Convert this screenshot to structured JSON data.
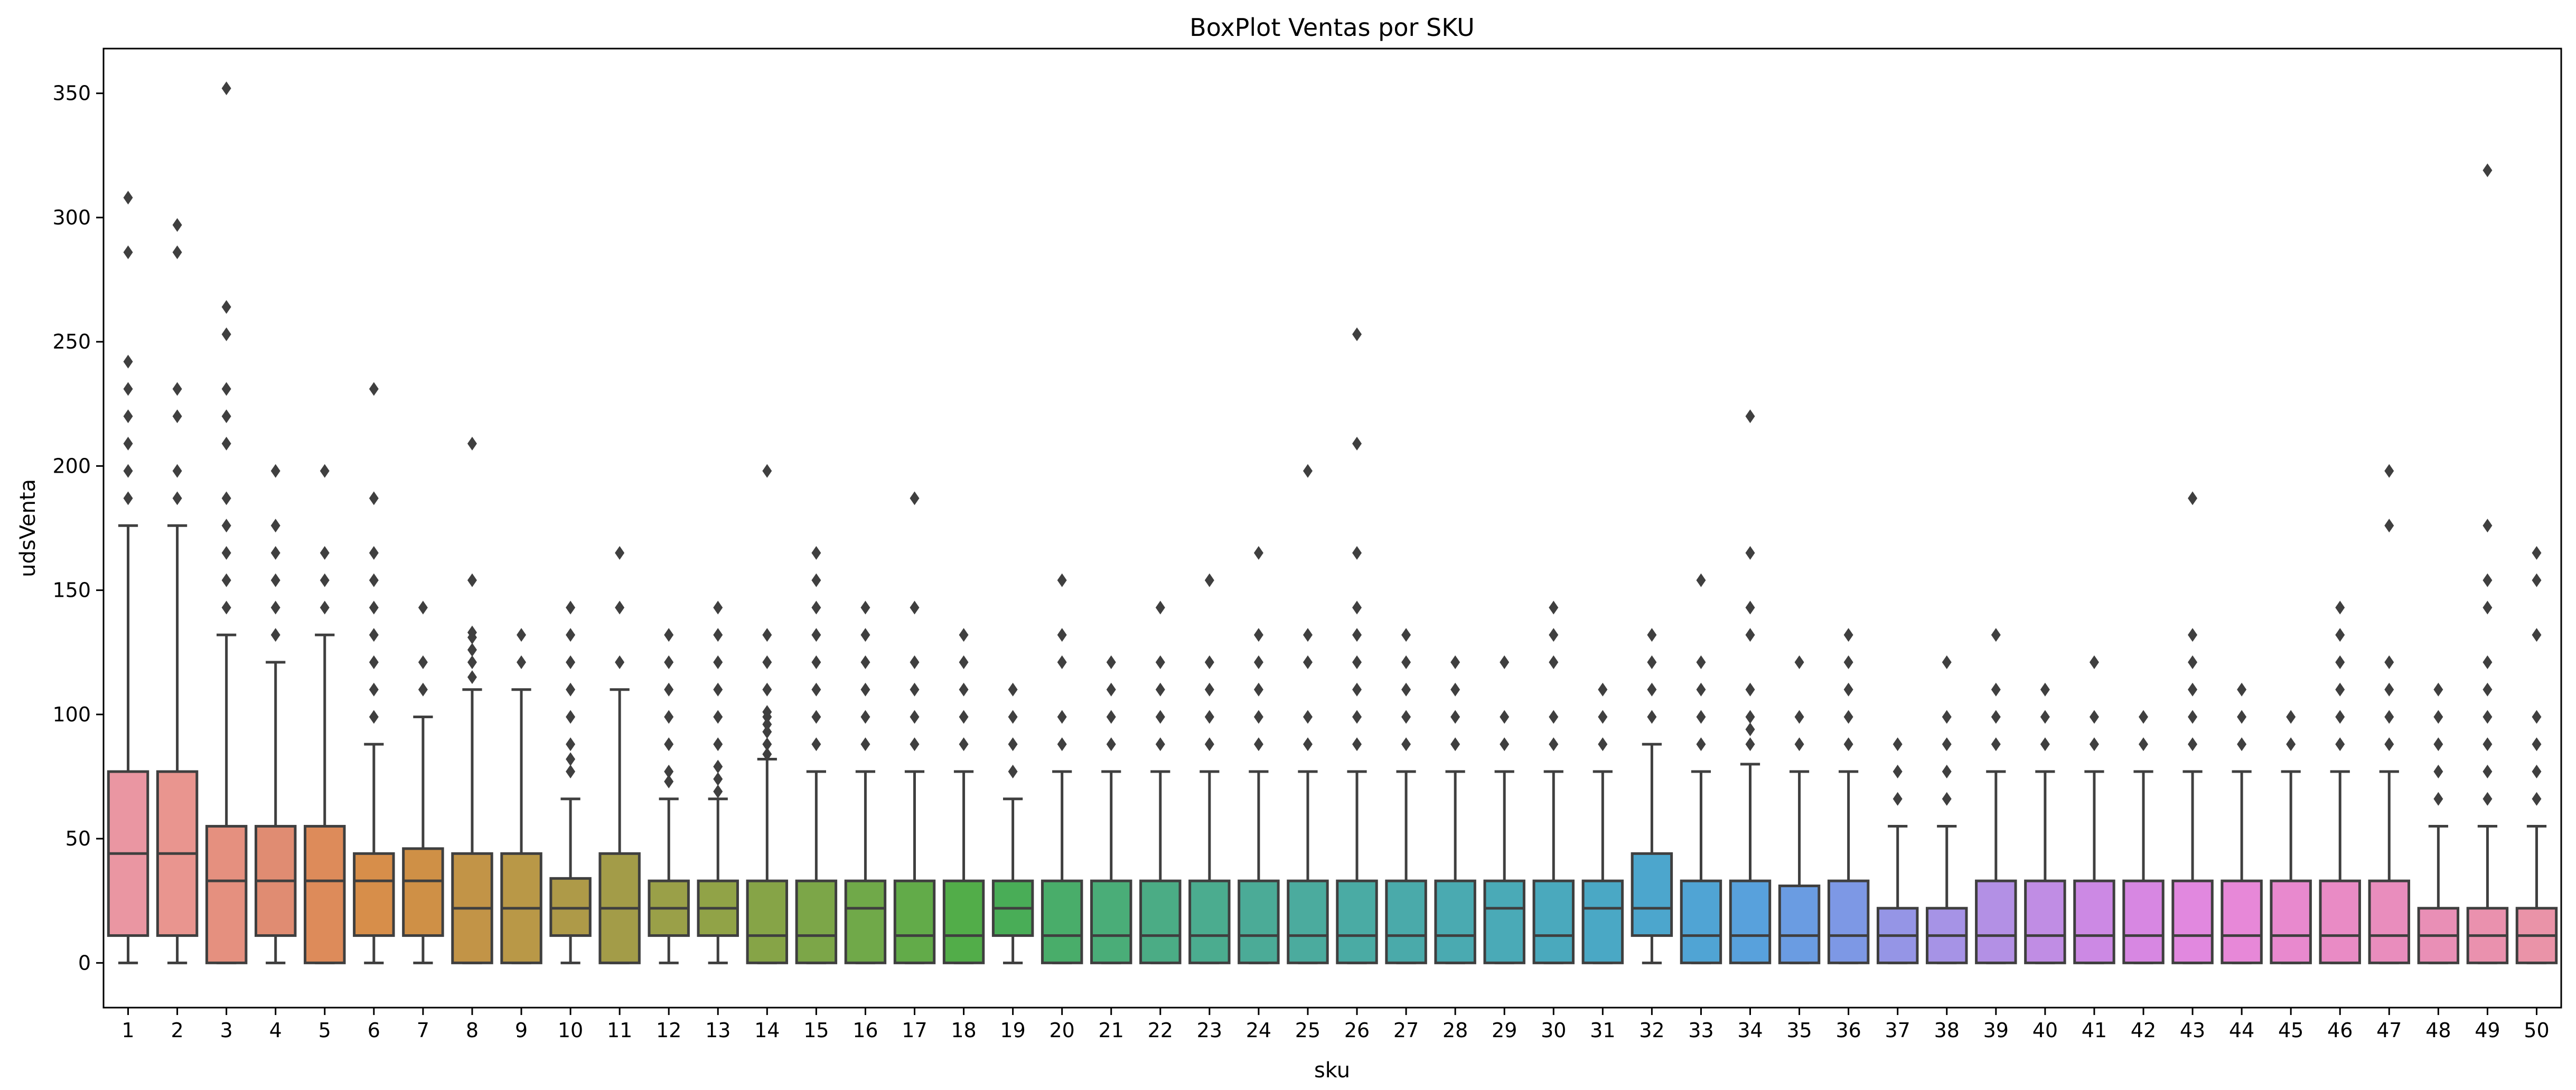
{
  "chart_data": {
    "type": "box",
    "title": "BoxPlot Ventas por SKU",
    "xlabel": "sku",
    "ylabel": "udsVenta",
    "ylim": [
      -18,
      368
    ],
    "yticks": [
      0,
      50,
      100,
      150,
      200,
      250,
      300,
      350
    ],
    "grid": false,
    "stroke_color": "#3f3f3f",
    "categories": [
      "1",
      "2",
      "3",
      "4",
      "5",
      "6",
      "7",
      "8",
      "9",
      "10",
      "11",
      "12",
      "13",
      "14",
      "15",
      "16",
      "17",
      "18",
      "19",
      "20",
      "21",
      "22",
      "23",
      "24",
      "25",
      "26",
      "27",
      "28",
      "29",
      "30",
      "31",
      "32",
      "33",
      "34",
      "35",
      "36",
      "37",
      "38",
      "39",
      "40",
      "41",
      "42",
      "43",
      "44",
      "45",
      "46",
      "47",
      "48",
      "49",
      "50"
    ],
    "colors": [
      "#ea96a2",
      "#e9958f",
      "#e5907f",
      "#e08c72",
      "#dd8b5a",
      "#d78e4a",
      "#cf9046",
      "#c29447",
      "#b99847",
      "#ae9a48",
      "#a39c48",
      "#9aa048",
      "#91a347",
      "#86a447",
      "#7ca648",
      "#70a949",
      "#62ab49",
      "#52ad49",
      "#49ad57",
      "#49ad6a",
      "#4aad78",
      "#4bac85",
      "#4bac8f",
      "#4bab97",
      "#4bab9e",
      "#4aaba4",
      "#4aaaaa",
      "#4aaab1",
      "#4aaab7",
      "#4aa9bd",
      "#4aa8c5",
      "#4ca6cd",
      "#50a4d4",
      "#58a1dc",
      "#6a9ce2",
      "#7d98e5",
      "#9595e6",
      "#a693e6",
      "#b390e5",
      "#c08de4",
      "#cc89e4",
      "#d787e2",
      "#e188df",
      "#e788d8",
      "#e889ce",
      "#e98bc5",
      "#e98dbd",
      "#e98fb6",
      "#ea91ae",
      "#ea93a8"
    ],
    "boxes": [
      {
        "q1": 11,
        "median": 44,
        "q3": 77,
        "whisker_low": 0,
        "whisker_high": 176,
        "outliers": [
          187,
          198,
          209,
          220,
          231,
          242,
          286,
          308
        ]
      },
      {
        "q1": 11,
        "median": 44,
        "q3": 77,
        "whisker_low": 0,
        "whisker_high": 176,
        "outliers": [
          187,
          198,
          220,
          231,
          286,
          297
        ]
      },
      {
        "q1": 0,
        "median": 33,
        "q3": 55,
        "whisker_low": 0,
        "whisker_high": 132,
        "outliers": [
          143,
          154,
          165,
          176,
          187,
          209,
          220,
          231,
          253,
          264,
          352
        ]
      },
      {
        "q1": 11,
        "median": 33,
        "q3": 55,
        "whisker_low": 0,
        "whisker_high": 121,
        "outliers": [
          132,
          143,
          154,
          165,
          176,
          198
        ]
      },
      {
        "q1": 0,
        "median": 33,
        "q3": 55,
        "whisker_low": 0,
        "whisker_high": 132,
        "outliers": [
          143,
          154,
          165,
          198
        ]
      },
      {
        "q1": 11,
        "median": 33,
        "q3": 44,
        "whisker_low": 0,
        "whisker_high": 88,
        "outliers": [
          99,
          110,
          121,
          132,
          143,
          154,
          165,
          187,
          231
        ]
      },
      {
        "q1": 11,
        "median": 33,
        "q3": 46,
        "whisker_low": 0,
        "whisker_high": 99,
        "outliers": [
          110,
          121,
          143
        ]
      },
      {
        "q1": 0,
        "median": 22,
        "q3": 44,
        "whisker_low": 0,
        "whisker_high": 110,
        "outliers": [
          115,
          121,
          126,
          131,
          133,
          154,
          209
        ]
      },
      {
        "q1": 0,
        "median": 22,
        "q3": 44,
        "whisker_low": 0,
        "whisker_high": 110,
        "outliers": [
          121,
          132
        ]
      },
      {
        "q1": 11,
        "median": 22,
        "q3": 34,
        "whisker_low": 0,
        "whisker_high": 66,
        "outliers": [
          77,
          82,
          88,
          99,
          110,
          121,
          132,
          143
        ]
      },
      {
        "q1": 0,
        "median": 22,
        "q3": 44,
        "whisker_low": 0,
        "whisker_high": 110,
        "outliers": [
          121,
          143,
          165
        ]
      },
      {
        "q1": 11,
        "median": 22,
        "q3": 33,
        "whisker_low": 0,
        "whisker_high": 66,
        "outliers": [
          73,
          77,
          88,
          99,
          110,
          121,
          132
        ]
      },
      {
        "q1": 11,
        "median": 22,
        "q3": 33,
        "whisker_low": 0,
        "whisker_high": 66,
        "outliers": [
          69,
          74,
          79,
          88,
          99,
          110,
          121,
          132,
          143
        ]
      },
      {
        "q1": 0,
        "median": 11,
        "q3": 33,
        "whisker_low": 0,
        "whisker_high": 82,
        "outliers": [
          84,
          88,
          93,
          96,
          99,
          101,
          110,
          121,
          132,
          198
        ]
      },
      {
        "q1": 0,
        "median": 11,
        "q3": 33,
        "whisker_low": 0,
        "whisker_high": 77,
        "outliers": [
          88,
          99,
          110,
          121,
          132,
          143,
          154,
          165
        ]
      },
      {
        "q1": 0,
        "median": 22,
        "q3": 33,
        "whisker_low": 0,
        "whisker_high": 77,
        "outliers": [
          88,
          99,
          110,
          121,
          132,
          143
        ]
      },
      {
        "q1": 0,
        "median": 11,
        "q3": 33,
        "whisker_low": 0,
        "whisker_high": 77,
        "outliers": [
          88,
          99,
          110,
          121,
          143,
          187
        ]
      },
      {
        "q1": 0,
        "median": 11,
        "q3": 33,
        "whisker_low": 0,
        "whisker_high": 77,
        "outliers": [
          88,
          99,
          110,
          121,
          132
        ]
      },
      {
        "q1": 11,
        "median": 22,
        "q3": 33,
        "whisker_low": 0,
        "whisker_high": 66,
        "outliers": [
          77,
          88,
          99,
          110
        ]
      },
      {
        "q1": 0,
        "median": 11,
        "q3": 33,
        "whisker_low": 0,
        "whisker_high": 77,
        "outliers": [
          88,
          99,
          121,
          132,
          154
        ]
      },
      {
        "q1": 0,
        "median": 11,
        "q3": 33,
        "whisker_low": 0,
        "whisker_high": 77,
        "outliers": [
          88,
          99,
          110,
          121
        ]
      },
      {
        "q1": 0,
        "median": 11,
        "q3": 33,
        "whisker_low": 0,
        "whisker_high": 77,
        "outliers": [
          88,
          99,
          110,
          121,
          143
        ]
      },
      {
        "q1": 0,
        "median": 11,
        "q3": 33,
        "whisker_low": 0,
        "whisker_high": 77,
        "outliers": [
          88,
          99,
          110,
          121,
          154
        ]
      },
      {
        "q1": 0,
        "median": 11,
        "q3": 33,
        "whisker_low": 0,
        "whisker_high": 77,
        "outliers": [
          88,
          99,
          110,
          121,
          132,
          165
        ]
      },
      {
        "q1": 0,
        "median": 11,
        "q3": 33,
        "whisker_low": 0,
        "whisker_high": 77,
        "outliers": [
          88,
          99,
          121,
          132,
          198
        ]
      },
      {
        "q1": 0,
        "median": 11,
        "q3": 33,
        "whisker_low": 0,
        "whisker_high": 77,
        "outliers": [
          88,
          99,
          110,
          121,
          132,
          143,
          165,
          209,
          253
        ]
      },
      {
        "q1": 0,
        "median": 11,
        "q3": 33,
        "whisker_low": 0,
        "whisker_high": 77,
        "outliers": [
          88,
          99,
          110,
          121,
          132
        ]
      },
      {
        "q1": 0,
        "median": 11,
        "q3": 33,
        "whisker_low": 0,
        "whisker_high": 77,
        "outliers": [
          88,
          99,
          110,
          121
        ]
      },
      {
        "q1": 0,
        "median": 22,
        "q3": 33,
        "whisker_low": 0,
        "whisker_high": 77,
        "outliers": [
          88,
          99,
          121
        ]
      },
      {
        "q1": 0,
        "median": 11,
        "q3": 33,
        "whisker_low": 0,
        "whisker_high": 77,
        "outliers": [
          88,
          99,
          121,
          132,
          143
        ]
      },
      {
        "q1": 0,
        "median": 22,
        "q3": 33,
        "whisker_low": 0,
        "whisker_high": 77,
        "outliers": [
          88,
          99,
          110
        ]
      },
      {
        "q1": 11,
        "median": 22,
        "q3": 44,
        "whisker_low": 0,
        "whisker_high": 88,
        "outliers": [
          99,
          110,
          121,
          132
        ]
      },
      {
        "q1": 0,
        "median": 11,
        "q3": 33,
        "whisker_low": 0,
        "whisker_high": 77,
        "outliers": [
          88,
          99,
          110,
          121,
          154
        ]
      },
      {
        "q1": 0,
        "median": 11,
        "q3": 33,
        "whisker_low": 0,
        "whisker_high": 80,
        "outliers": [
          88,
          94,
          99,
          110,
          132,
          143,
          165,
          220
        ]
      },
      {
        "q1": 0,
        "median": 11,
        "q3": 31,
        "whisker_low": 0,
        "whisker_high": 77,
        "outliers": [
          88,
          99,
          121
        ]
      },
      {
        "q1": 0,
        "median": 11,
        "q3": 33,
        "whisker_low": 0,
        "whisker_high": 77,
        "outliers": [
          88,
          99,
          110,
          121,
          132
        ]
      },
      {
        "q1": 0,
        "median": 11,
        "q3": 22,
        "whisker_low": 0,
        "whisker_high": 55,
        "outliers": [
          66,
          77,
          88
        ]
      },
      {
        "q1": 0,
        "median": 11,
        "q3": 22,
        "whisker_low": 0,
        "whisker_high": 55,
        "outliers": [
          66,
          77,
          88,
          99,
          121
        ]
      },
      {
        "q1": 0,
        "median": 11,
        "q3": 33,
        "whisker_low": 0,
        "whisker_high": 77,
        "outliers": [
          88,
          99,
          110,
          132
        ]
      },
      {
        "q1": 0,
        "median": 11,
        "q3": 33,
        "whisker_low": 0,
        "whisker_high": 77,
        "outliers": [
          88,
          99,
          110
        ]
      },
      {
        "q1": 0,
        "median": 11,
        "q3": 33,
        "whisker_low": 0,
        "whisker_high": 77,
        "outliers": [
          88,
          99,
          121
        ]
      },
      {
        "q1": 0,
        "median": 11,
        "q3": 33,
        "whisker_low": 0,
        "whisker_high": 77,
        "outliers": [
          88,
          99
        ]
      },
      {
        "q1": 0,
        "median": 11,
        "q3": 33,
        "whisker_low": 0,
        "whisker_high": 77,
        "outliers": [
          88,
          99,
          110,
          121,
          132,
          187
        ]
      },
      {
        "q1": 0,
        "median": 11,
        "q3": 33,
        "whisker_low": 0,
        "whisker_high": 77,
        "outliers": [
          88,
          99,
          110
        ]
      },
      {
        "q1": 0,
        "median": 11,
        "q3": 33,
        "whisker_low": 0,
        "whisker_high": 77,
        "outliers": [
          88,
          99
        ]
      },
      {
        "q1": 0,
        "median": 11,
        "q3": 33,
        "whisker_low": 0,
        "whisker_high": 77,
        "outliers": [
          88,
          99,
          110,
          121,
          132,
          143
        ]
      },
      {
        "q1": 0,
        "median": 11,
        "q3": 33,
        "whisker_low": 0,
        "whisker_high": 77,
        "outliers": [
          88,
          99,
          110,
          121,
          176,
          198
        ]
      },
      {
        "q1": 0,
        "median": 11,
        "q3": 22,
        "whisker_low": 0,
        "whisker_high": 55,
        "outliers": [
          66,
          77,
          88,
          99,
          110
        ]
      },
      {
        "q1": 0,
        "median": 11,
        "q3": 22,
        "whisker_low": 0,
        "whisker_high": 55,
        "outliers": [
          66,
          77,
          88,
          99,
          110,
          121,
          143,
          154,
          176,
          319
        ]
      },
      {
        "q1": 0,
        "median": 11,
        "q3": 22,
        "whisker_low": 0,
        "whisker_high": 55,
        "outliers": [
          66,
          77,
          88,
          99,
          132,
          154,
          165
        ]
      }
    ]
  }
}
